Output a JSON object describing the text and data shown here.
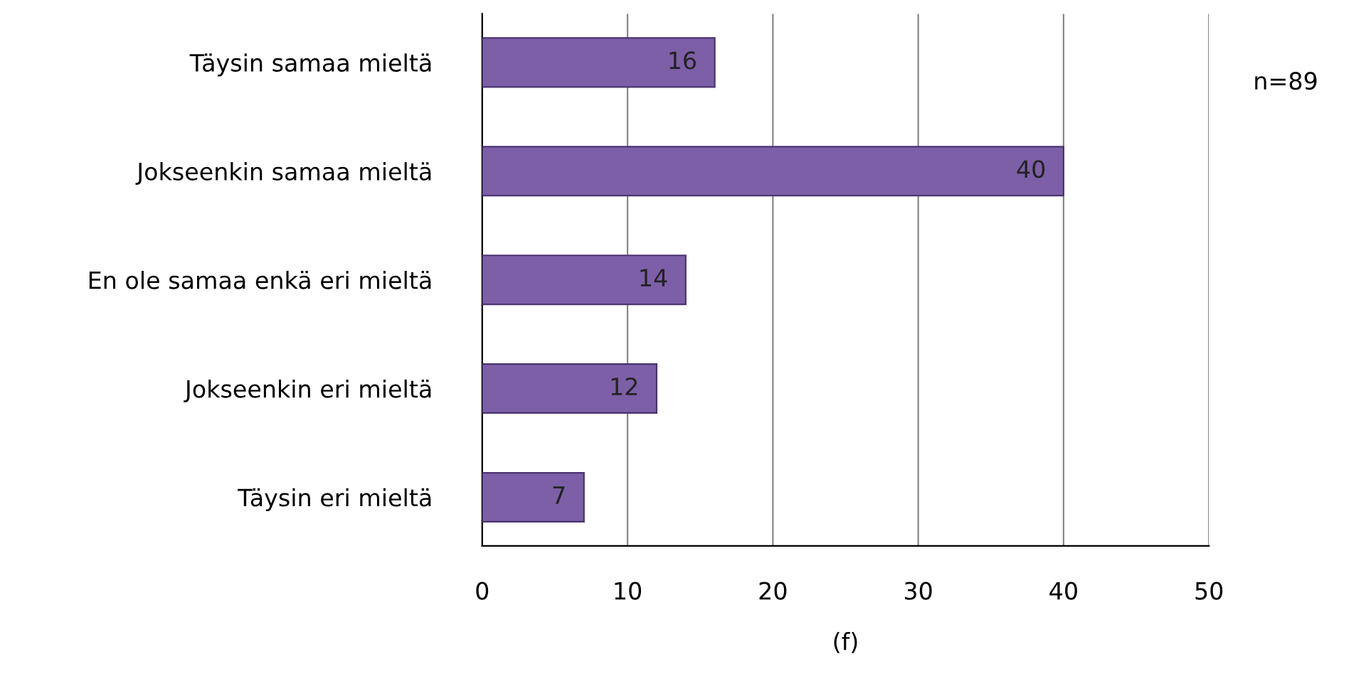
{
  "chart_data": {
    "type": "bar",
    "orientation": "horizontal",
    "categories": [
      "Täysin samaa mieltä",
      "Jokseenkin samaa mieltä",
      "En ole samaa enkä eri mieltä",
      "Jokseenkin eri mieltä",
      "Täysin eri mieltä"
    ],
    "values": [
      16,
      40,
      14,
      12,
      7
    ],
    "color": "#7d5fa8",
    "xlim": [
      0,
      50
    ],
    "xticks": [
      0,
      10,
      20,
      30,
      40,
      50
    ],
    "grid": "x",
    "xlabel": "(f)",
    "data_labels": true,
    "annotations": [
      "n=89"
    ]
  }
}
